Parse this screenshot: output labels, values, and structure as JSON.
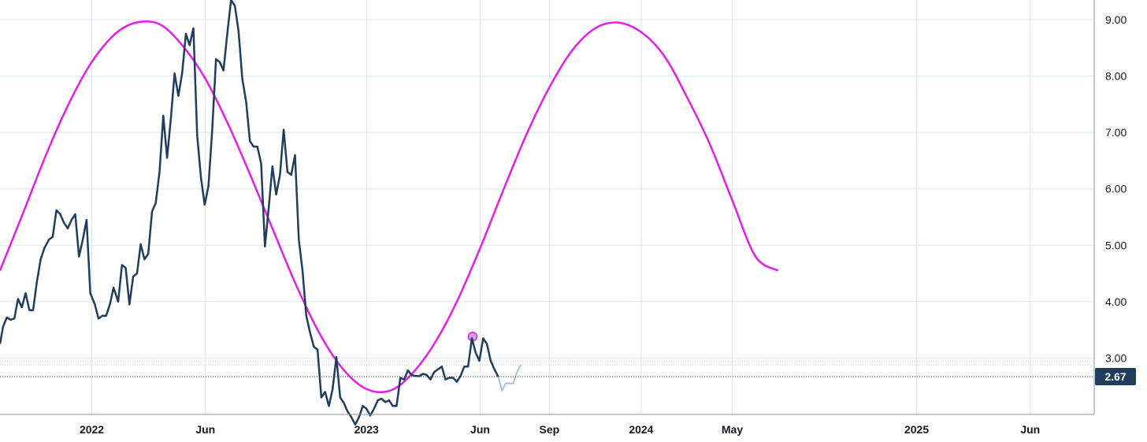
{
  "chart_data": {
    "type": "line",
    "title": "",
    "xlabel": "",
    "ylabel": "",
    "x_range": [
      "2021-09-01",
      "2025-08-25"
    ],
    "ylim": [
      2.0,
      9.35
    ],
    "x_ticks": [
      {
        "label": "2022",
        "date": "2022-01-01"
      },
      {
        "label": "Jun",
        "date": "2022-06-01"
      },
      {
        "label": "2023",
        "date": "2023-01-01"
      },
      {
        "label": "Jun",
        "date": "2023-06-01"
      },
      {
        "label": "Sep",
        "date": "2023-09-01"
      },
      {
        "label": "2024",
        "date": "2024-01-01"
      },
      {
        "label": "May",
        "date": "2024-05-01"
      },
      {
        "label": "2025",
        "date": "2025-01-01"
      },
      {
        "label": "Jun",
        "date": "2025-06-01"
      }
    ],
    "y_ticks": [
      "3.00",
      "4.00",
      "5.00",
      "6.00",
      "7.00",
      "8.00",
      "9.00"
    ],
    "last_value_label": "2.67",
    "last_value": 2.67,
    "grid": true,
    "colors": {
      "price": "#1f3d5c",
      "projection": "#a9c2dc",
      "cycle": "#e61ee6",
      "grid": "#dbe6f0",
      "axis": "#8b94a3",
      "badge": "#1f3d5c",
      "marker_fill": "#c9a6d9"
    },
    "series": [
      {
        "type": "line",
        "points": [
          [
            "2021-09-01",
            3.25
          ],
          [
            "2021-09-05",
            3.55
          ],
          [
            "2021-09-10",
            3.72
          ],
          [
            "2021-09-15",
            3.68
          ],
          [
            "2021-09-20",
            3.7
          ],
          [
            "2021-09-25",
            4.05
          ],
          [
            "2021-09-30",
            3.9
          ],
          [
            "2021-10-05",
            4.15
          ],
          [
            "2021-10-10",
            3.85
          ],
          [
            "2021-10-15",
            3.85
          ],
          [
            "2021-10-20",
            4.35
          ],
          [
            "2021-10-25",
            4.75
          ],
          [
            "2021-10-30",
            4.95
          ],
          [
            "2021-11-05",
            5.1
          ],
          [
            "2021-11-10",
            5.15
          ],
          [
            "2021-11-15",
            5.62
          ],
          [
            "2021-11-20",
            5.55
          ],
          [
            "2021-11-25",
            5.4
          ],
          [
            "2021-11-30",
            5.3
          ],
          [
            "2021-12-05",
            5.45
          ],
          [
            "2021-12-10",
            5.55
          ],
          [
            "2021-12-15",
            4.8
          ],
          [
            "2021-12-20",
            5.1
          ],
          [
            "2021-12-25",
            5.45
          ],
          [
            "2021-12-30",
            4.15
          ],
          [
            "2022-01-05",
            3.95
          ],
          [
            "2022-01-10",
            3.7
          ],
          [
            "2022-01-15",
            3.75
          ],
          [
            "2022-01-20",
            3.75
          ],
          [
            "2022-01-25",
            3.95
          ],
          [
            "2022-01-30",
            4.25
          ],
          [
            "2022-02-05",
            4.0
          ],
          [
            "2022-02-10",
            4.65
          ],
          [
            "2022-02-15",
            4.6
          ],
          [
            "2022-02-20",
            3.95
          ],
          [
            "2022-02-25",
            4.45
          ],
          [
            "2022-03-02",
            4.5
          ],
          [
            "2022-03-07",
            5.02
          ],
          [
            "2022-03-12",
            4.75
          ],
          [
            "2022-03-17",
            4.85
          ],
          [
            "2022-03-22",
            5.6
          ],
          [
            "2022-03-27",
            5.75
          ],
          [
            "2022-04-01",
            6.3
          ],
          [
            "2022-04-06",
            7.3
          ],
          [
            "2022-04-11",
            6.55
          ],
          [
            "2022-04-16",
            7.25
          ],
          [
            "2022-04-21",
            8.05
          ],
          [
            "2022-04-26",
            7.65
          ],
          [
            "2022-05-01",
            8.05
          ],
          [
            "2022-05-06",
            8.75
          ],
          [
            "2022-05-11",
            8.55
          ],
          [
            "2022-05-16",
            8.85
          ],
          [
            "2022-05-21",
            6.95
          ],
          [
            "2022-05-26",
            6.2
          ],
          [
            "2022-05-31",
            5.72
          ],
          [
            "2022-06-05",
            6.05
          ],
          [
            "2022-06-10",
            7.05
          ],
          [
            "2022-06-15",
            8.3
          ],
          [
            "2022-06-20",
            8.25
          ],
          [
            "2022-06-25",
            8.1
          ],
          [
            "2022-06-30",
            8.75
          ],
          [
            "2022-07-05",
            9.35
          ],
          [
            "2022-07-10",
            9.25
          ],
          [
            "2022-07-15",
            8.8
          ],
          [
            "2022-07-20",
            7.95
          ],
          [
            "2022-07-25",
            7.55
          ],
          [
            "2022-07-30",
            6.85
          ],
          [
            "2022-08-04",
            6.75
          ],
          [
            "2022-08-09",
            6.75
          ],
          [
            "2022-08-14",
            6.45
          ],
          [
            "2022-08-19",
            4.98
          ],
          [
            "2022-08-24",
            5.65
          ],
          [
            "2022-08-29",
            6.4
          ],
          [
            "2022-09-03",
            5.9
          ],
          [
            "2022-09-08",
            6.25
          ],
          [
            "2022-09-13",
            7.05
          ],
          [
            "2022-09-18",
            6.3
          ],
          [
            "2022-09-23",
            6.25
          ],
          [
            "2022-09-28",
            6.6
          ],
          [
            "2022-10-03",
            5.1
          ],
          [
            "2022-10-08",
            4.55
          ],
          [
            "2022-10-13",
            3.75
          ],
          [
            "2022-10-18",
            3.45
          ],
          [
            "2022-10-23",
            3.2
          ],
          [
            "2022-10-28",
            3.15
          ],
          [
            "2022-11-02",
            2.3
          ],
          [
            "2022-11-07",
            2.4
          ],
          [
            "2022-11-12",
            2.15
          ],
          [
            "2022-11-17",
            2.45
          ],
          [
            "2022-11-22",
            3.02
          ],
          [
            "2022-11-27",
            2.3
          ],
          [
            "2022-12-02",
            2.2
          ],
          [
            "2022-12-07",
            2.05
          ],
          [
            "2022-12-12",
            1.95
          ],
          [
            "2022-12-17",
            1.82
          ],
          [
            "2022-12-22",
            1.95
          ],
          [
            "2022-12-27",
            2.15
          ],
          [
            "2023-01-01",
            2.1
          ],
          [
            "2023-01-06",
            1.98
          ],
          [
            "2023-01-11",
            2.1
          ],
          [
            "2023-01-16",
            2.25
          ],
          [
            "2023-01-21",
            2.28
          ],
          [
            "2023-01-26",
            2.22
          ],
          [
            "2023-01-31",
            2.25
          ],
          [
            "2023-02-05",
            2.15
          ],
          [
            "2023-02-10",
            2.15
          ],
          [
            "2023-02-15",
            2.65
          ],
          [
            "2023-02-20",
            2.62
          ],
          [
            "2023-02-25",
            2.78
          ],
          [
            "2023-03-02",
            2.7
          ],
          [
            "2023-03-07",
            2.68
          ],
          [
            "2023-03-12",
            2.68
          ],
          [
            "2023-03-17",
            2.72
          ],
          [
            "2023-03-22",
            2.7
          ],
          [
            "2023-03-27",
            2.62
          ],
          [
            "2023-04-01",
            2.75
          ],
          [
            "2023-04-06",
            2.8
          ],
          [
            "2023-04-11",
            2.85
          ],
          [
            "2023-04-16",
            2.62
          ],
          [
            "2023-04-21",
            2.65
          ],
          [
            "2023-04-26",
            2.65
          ],
          [
            "2023-05-01",
            2.58
          ],
          [
            "2023-05-06",
            2.68
          ],
          [
            "2023-05-11",
            2.85
          ],
          [
            "2023-05-16",
            2.85
          ],
          [
            "2023-05-21",
            3.35
          ],
          [
            "2023-05-26",
            3.1
          ],
          [
            "2023-05-31",
            2.95
          ],
          [
            "2023-06-05",
            3.35
          ],
          [
            "2023-06-10",
            3.25
          ],
          [
            "2023-06-15",
            2.95
          ],
          [
            "2023-06-20",
            2.8
          ],
          [
            "2023-06-25",
            2.67
          ]
        ]
      },
      {
        "type": "projection",
        "points": [
          [
            "2023-06-25",
            2.67
          ],
          [
            "2023-06-30",
            2.42
          ],
          [
            "2023-07-05",
            2.55
          ],
          [
            "2023-07-10",
            2.55
          ],
          [
            "2023-07-15",
            2.55
          ],
          [
            "2023-07-20",
            2.75
          ],
          [
            "2023-07-25",
            2.88
          ]
        ]
      },
      {
        "type": "sine",
        "points": [
          [
            "2021-09-01",
            4.55
          ],
          [
            "2021-10-01",
            5.55
          ],
          [
            "2021-11-01",
            6.6
          ],
          [
            "2021-12-01",
            7.5
          ],
          [
            "2022-01-01",
            8.25
          ],
          [
            "2022-02-01",
            8.75
          ],
          [
            "2022-03-01",
            8.95
          ],
          [
            "2022-04-01",
            8.92
          ],
          [
            "2022-05-01",
            8.55
          ],
          [
            "2022-06-01",
            7.95
          ],
          [
            "2022-07-01",
            7.15
          ],
          [
            "2022-08-01",
            6.2
          ],
          [
            "2022-09-01",
            5.2
          ],
          [
            "2022-10-01",
            4.25
          ],
          [
            "2022-11-01",
            3.4
          ],
          [
            "2022-12-01",
            2.8
          ],
          [
            "2023-01-01",
            2.45
          ],
          [
            "2023-02-01",
            2.42
          ],
          [
            "2023-03-01",
            2.7
          ],
          [
            "2023-04-01",
            3.25
          ],
          [
            "2023-05-01",
            4.0
          ],
          [
            "2023-06-01",
            4.95
          ],
          [
            "2023-07-01",
            5.95
          ],
          [
            "2023-08-01",
            6.95
          ],
          [
            "2023-09-01",
            7.8
          ],
          [
            "2023-10-01",
            8.45
          ],
          [
            "2023-11-01",
            8.85
          ],
          [
            "2023-12-01",
            8.95
          ],
          [
            "2024-01-01",
            8.78
          ],
          [
            "2024-02-01",
            8.35
          ],
          [
            "2024-03-01",
            7.65
          ],
          [
            "2024-04-01",
            6.8
          ],
          [
            "2024-05-01",
            5.8
          ],
          [
            "2024-06-01",
            4.8
          ],
          [
            "2024-07-01",
            4.55
          ]
        ],
        "marker": [
          "2023-05-22",
          3.38
        ]
      }
    ]
  }
}
